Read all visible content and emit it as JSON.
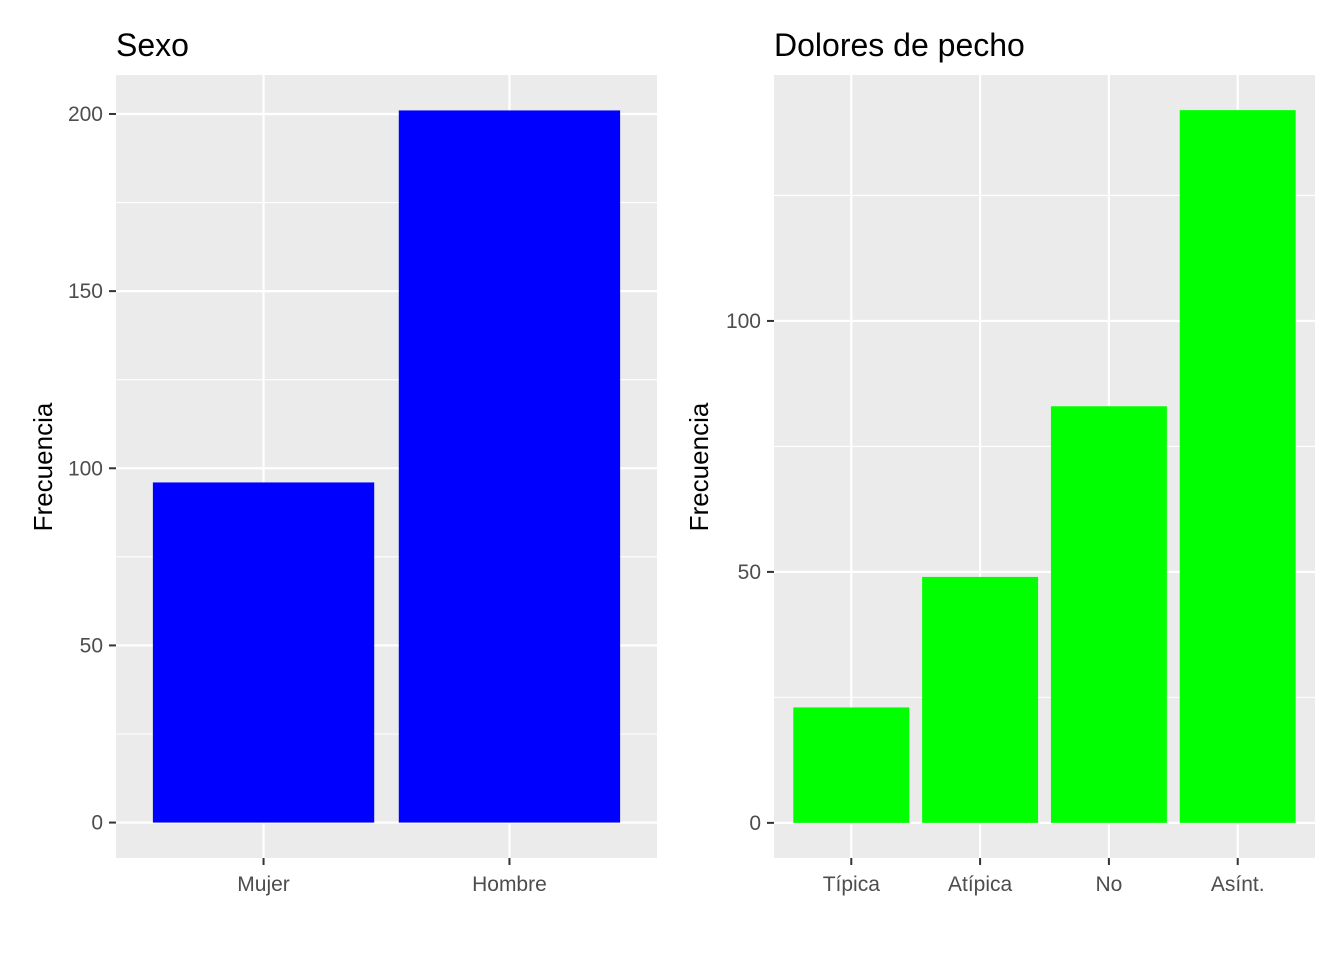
{
  "chart_data": [
    {
      "type": "bar",
      "title": "Sexo",
      "xlabel": "",
      "ylabel": "Frecuencia",
      "categories": [
        "Mujer",
        "Hombre"
      ],
      "values": [
        96,
        201
      ],
      "ylim": [
        -10,
        211
      ],
      "yticks": [
        0,
        50,
        100,
        150,
        200
      ],
      "bar_color": "#0000ff",
      "panel_background": "#ebebeb",
      "grid": true,
      "legend": "none"
    },
    {
      "type": "bar",
      "title": "Dolores de pecho",
      "xlabel": "",
      "ylabel": "Frecuencia",
      "categories": [
        "Típica",
        "Atípica",
        "No",
        "Asínt."
      ],
      "values": [
        23,
        49,
        83,
        142
      ],
      "ylim": [
        -7,
        149
      ],
      "yticks": [
        0,
        50,
        100
      ],
      "bar_color": "#00ff00",
      "panel_background": "#ebebeb",
      "grid": true,
      "legend": "none"
    }
  ]
}
